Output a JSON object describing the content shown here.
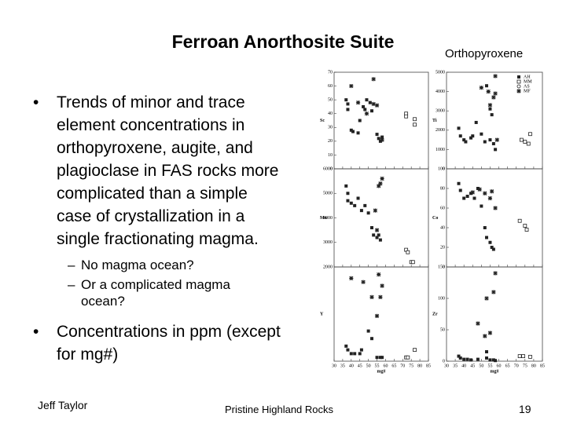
{
  "title": "Ferroan Anorthosite Suite",
  "figure_title": "Orthopyroxene",
  "bullets": [
    {
      "text": "Trends of minor and trace element concentrations in orthopyroxene, augite, and plagioclase in FAS rocks more complicated than a simple case of crystallization in a single fractionating magma.",
      "sub": [
        "No magma ocean?",
        "Or a complicated magma ocean?"
      ]
    },
    {
      "text": "Concentrations in ppm (except for mg#)",
      "sub": []
    }
  ],
  "footer": {
    "author": "Jeff Taylor",
    "center": "Pristine Highland Rocks",
    "page": "19"
  },
  "figure": {
    "xlabel": "mg#",
    "xlim": [
      30,
      85
    ],
    "xticks": [
      30,
      35,
      40,
      45,
      50,
      55,
      60,
      65,
      70,
      75,
      80,
      85
    ],
    "legend": [
      "AH",
      "MM",
      "AS",
      "MF"
    ],
    "panels": [
      {
        "label": "Sc",
        "ylim": [
          0,
          70
        ],
        "yticks": [
          0,
          10,
          20,
          30,
          40,
          50,
          60,
          70
        ],
        "points": [
          [
            37,
            50,
            0
          ],
          [
            38,
            47,
            0
          ],
          [
            38,
            43,
            0
          ],
          [
            40,
            28,
            0
          ],
          [
            41,
            27,
            0
          ],
          [
            44,
            26,
            0
          ],
          [
            45,
            35,
            0
          ],
          [
            47,
            45,
            0
          ],
          [
            48,
            43,
            0
          ],
          [
            49,
            50,
            0
          ],
          [
            51,
            48,
            0
          ],
          [
            52,
            42,
            0
          ],
          [
            55,
            25,
            0
          ],
          [
            56,
            22,
            0
          ],
          [
            57,
            20,
            0
          ],
          [
            58,
            23,
            0
          ],
          [
            40,
            60,
            3
          ],
          [
            44,
            48,
            3
          ],
          [
            49,
            40,
            3
          ],
          [
            53,
            65,
            3
          ],
          [
            53,
            47,
            3
          ],
          [
            55,
            46,
            3
          ],
          [
            58,
            21,
            3
          ],
          [
            72,
            40,
            1
          ],
          [
            72,
            38,
            1
          ],
          [
            77,
            36,
            1
          ],
          [
            77,
            32,
            1
          ]
        ]
      },
      {
        "label": "Ti",
        "ylim": [
          0,
          5000
        ],
        "yticks": [
          0,
          1000,
          2000,
          3000,
          4000,
          5000
        ],
        "points": [
          [
            37,
            2100,
            0
          ],
          [
            38,
            1700,
            0
          ],
          [
            40,
            1500,
            0
          ],
          [
            41,
            1400,
            0
          ],
          [
            44,
            1600,
            0
          ],
          [
            45,
            1700,
            0
          ],
          [
            47,
            2400,
            0
          ],
          [
            50,
            1800,
            0
          ],
          [
            52,
            1400,
            0
          ],
          [
            55,
            1500,
            0
          ],
          [
            57,
            1300,
            0
          ],
          [
            58,
            1000,
            0
          ],
          [
            53,
            4300,
            0
          ],
          [
            55,
            3100,
            0
          ],
          [
            56,
            2800,
            0
          ],
          [
            50,
            4200,
            3
          ],
          [
            54,
            4000,
            3
          ],
          [
            55,
            3300,
            3
          ],
          [
            57,
            3700,
            3
          ],
          [
            58,
            4800,
            3
          ],
          [
            58,
            3900,
            3
          ],
          [
            59,
            1500,
            3
          ],
          [
            73,
            1500,
            1
          ],
          [
            75,
            1400,
            1
          ],
          [
            78,
            1800,
            1
          ],
          [
            77,
            1300,
            1
          ]
        ]
      },
      {
        "label": "Mn",
        "ylim": [
          2000,
          6000
        ],
        "yticks": [
          2000,
          3000,
          4000,
          5000,
          6000
        ],
        "points": [
          [
            37,
            5300,
            0
          ],
          [
            38,
            5000,
            0
          ],
          [
            38,
            4700,
            0
          ],
          [
            40,
            4600,
            0
          ],
          [
            42,
            4500,
            0
          ],
          [
            44,
            4800,
            0
          ],
          [
            46,
            4300,
            0
          ],
          [
            48,
            4500,
            0
          ],
          [
            50,
            4200,
            0
          ],
          [
            52,
            3600,
            0
          ],
          [
            53,
            3300,
            0
          ],
          [
            55,
            3200,
            0
          ],
          [
            56,
            3300,
            0
          ],
          [
            57,
            3100,
            0
          ],
          [
            54,
            4300,
            3
          ],
          [
            56,
            5300,
            3
          ],
          [
            57,
            5400,
            3
          ],
          [
            58,
            5600,
            3
          ],
          [
            55,
            3500,
            3
          ],
          [
            72,
            2700,
            1
          ],
          [
            73,
            2600,
            1
          ],
          [
            75,
            2200,
            1
          ],
          [
            76,
            2200,
            1
          ]
        ]
      },
      {
        "label": "Co",
        "ylim": [
          0,
          100
        ],
        "yticks": [
          0,
          20,
          40,
          60,
          80,
          100
        ],
        "points": [
          [
            37,
            85,
            0
          ],
          [
            38,
            78,
            0
          ],
          [
            40,
            70,
            0
          ],
          [
            42,
            72,
            0
          ],
          [
            44,
            75,
            0
          ],
          [
            46,
            70,
            0
          ],
          [
            48,
            80,
            0
          ],
          [
            50,
            62,
            0
          ],
          [
            52,
            40,
            0
          ],
          [
            53,
            30,
            0
          ],
          [
            55,
            25,
            0
          ],
          [
            56,
            20,
            0
          ],
          [
            57,
            18,
            0
          ],
          [
            45,
            76,
            3
          ],
          [
            49,
            79,
            3
          ],
          [
            52,
            75,
            3
          ],
          [
            55,
            70,
            3
          ],
          [
            56,
            77,
            3
          ],
          [
            58,
            60,
            3
          ],
          [
            72,
            47,
            1
          ],
          [
            75,
            42,
            1
          ],
          [
            76,
            38,
            1
          ]
        ]
      },
      {
        "label": "Y",
        "ylim": [
          0,
          25
        ],
        "yticks": [],
        "points": [
          [
            37,
            4,
            0
          ],
          [
            38,
            3,
            0
          ],
          [
            40,
            2,
            0
          ],
          [
            42,
            2,
            0
          ],
          [
            45,
            2,
            0
          ],
          [
            46,
            3,
            0
          ],
          [
            50,
            8,
            0
          ],
          [
            52,
            6,
            0
          ],
          [
            55,
            1,
            0
          ],
          [
            57,
            1,
            0
          ],
          [
            58,
            1,
            0
          ],
          [
            40,
            22,
            3
          ],
          [
            47,
            21,
            3
          ],
          [
            52,
            17,
            3
          ],
          [
            55,
            12,
            3
          ],
          [
            56,
            23,
            3
          ],
          [
            57,
            17,
            3
          ],
          [
            58,
            20,
            3
          ],
          [
            72,
            1,
            1
          ],
          [
            73,
            1,
            1
          ],
          [
            77,
            3,
            1
          ]
        ]
      },
      {
        "label": "Zr",
        "ylim": [
          0,
          150
        ],
        "yticks": [
          0,
          50,
          100,
          150
        ],
        "points": [
          [
            37,
            8,
            0
          ],
          [
            38,
            5,
            0
          ],
          [
            40,
            3,
            0
          ],
          [
            42,
            3,
            0
          ],
          [
            44,
            2,
            0
          ],
          [
            48,
            3,
            0
          ],
          [
            53,
            5,
            0
          ],
          [
            53,
            15,
            0
          ],
          [
            55,
            2,
            0
          ],
          [
            57,
            2,
            0
          ],
          [
            58,
            1,
            0
          ],
          [
            48,
            60,
            3
          ],
          [
            52,
            40,
            3
          ],
          [
            53,
            100,
            3
          ],
          [
            55,
            45,
            3
          ],
          [
            57,
            110,
            3
          ],
          [
            58,
            140,
            3
          ],
          [
            72,
            8,
            1
          ],
          [
            74,
            8,
            1
          ],
          [
            78,
            7,
            1
          ]
        ]
      }
    ]
  }
}
